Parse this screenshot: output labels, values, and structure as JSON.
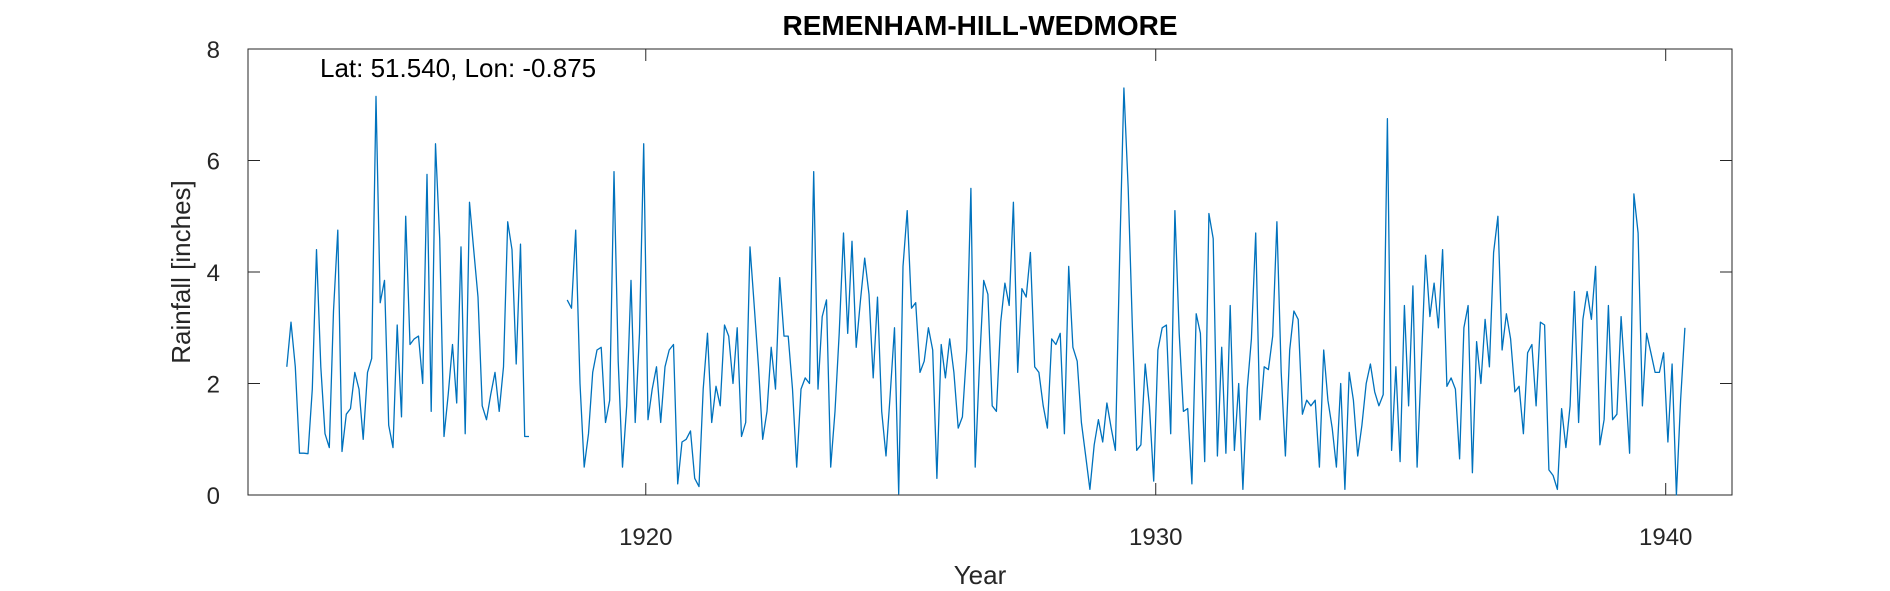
{
  "chart_data": {
    "type": "line",
    "title": "REMENHAM-HILL-WEDMORE",
    "annotation": "Lat: 51.540, Lon: -0.875",
    "xlabel": "Year",
    "ylabel": "Rainfall [inches]",
    "xlim": [
      1912.2,
      1941.3
    ],
    "ylim": [
      0,
      8
    ],
    "xticks": [
      1920,
      1930,
      1940
    ],
    "yticks": [
      0,
      2,
      4,
      6,
      8
    ],
    "grid": false,
    "line_color": "#0072bd",
    "series": [
      {
        "segments": [
          {
            "start": 1912.96,
            "step": 0.08333,
            "values": [
              2.3,
              3.1,
              2.3,
              0.75,
              0.75,
              0.74,
              1.9,
              4.4,
              2.3,
              1.1,
              0.85,
              3.3,
              4.75,
              0.78,
              1.45,
              1.55,
              2.2,
              1.9,
              1.0,
              2.2,
              2.45,
              7.15,
              3.45,
              3.85,
              1.25,
              0.85,
              3.05,
              1.4,
              5.0,
              2.7,
              2.8,
              2.85,
              2.0,
              5.75,
              1.5,
              6.3,
              4.6,
              1.05,
              1.8,
              2.7,
              1.65,
              4.45,
              1.1,
              5.25,
              4.4,
              3.55,
              1.6,
              1.35,
              1.8,
              2.2,
              1.5,
              2.3,
              4.9,
              4.4,
              2.35,
              4.5,
              1.05,
              1.05
            ]
          },
          {
            "start": 1918.46,
            "step": 0.08333,
            "values": [
              3.5,
              3.35,
              4.75,
              2.0,
              0.5,
              1.1,
              2.2,
              2.6,
              2.65,
              1.3,
              1.7,
              5.8,
              2.4,
              0.5,
              1.6,
              3.85,
              1.3,
              2.9,
              6.3,
              1.35,
              1.9,
              2.3,
              1.3,
              2.3,
              2.6,
              2.7,
              0.2,
              0.95,
              1.0,
              1.15,
              0.3,
              0.15,
              1.9,
              2.9,
              1.3,
              1.95,
              1.6,
              3.05,
              2.85,
              2.0,
              3.0,
              1.05,
              1.3,
              4.45,
              3.4,
              2.3,
              1.0,
              1.5,
              2.65,
              1.9,
              3.9,
              2.85,
              2.85,
              1.9,
              0.5,
              1.9,
              2.1,
              2.0,
              5.8,
              1.9,
              3.2,
              3.5,
              0.5,
              1.5,
              2.9,
              4.7,
              2.9,
              4.55,
              2.65,
              3.5,
              4.25,
              3.6,
              2.1,
              3.55,
              1.5,
              0.7,
              1.8,
              3.0,
              0.02,
              4.1,
              5.1,
              3.35,
              3.45,
              2.2,
              2.4,
              3.0,
              2.6,
              0.3,
              2.7,
              2.1,
              2.8,
              2.2,
              1.2,
              1.4,
              2.6,
              5.5,
              0.5,
              2.3,
              3.85,
              3.6,
              1.6,
              1.5,
              3.1,
              3.8,
              3.4,
              5.25,
              2.2,
              3.7,
              3.55,
              4.35,
              2.3,
              2.2,
              1.6,
              1.2,
              2.8,
              2.7,
              2.9,
              1.1,
              4.1,
              2.65,
              2.4,
              1.3,
              0.7,
              0.1,
              0.9,
              1.35,
              0.95,
              1.65,
              1.2,
              0.8,
              4.3,
              7.3,
              5.5,
              3.0,
              0.8,
              0.9,
              2.35,
              1.6,
              0.25,
              2.6,
              3.0,
              3.05,
              1.1,
              5.1,
              2.9,
              1.5,
              1.55,
              0.2,
              3.25,
              2.9,
              0.6,
              5.05,
              4.6,
              0.7,
              2.65,
              0.75,
              3.4,
              0.8,
              2.0,
              0.1,
              1.9,
              2.8,
              4.7,
              1.35,
              2.3,
              2.25,
              2.85,
              4.9,
              2.2,
              0.7,
              2.6,
              3.3,
              3.15,
              1.45,
              1.7,
              1.6,
              1.7,
              0.5,
              2.6,
              1.7,
              1.2,
              0.5,
              2.0,
              0.1,
              2.2,
              1.7,
              0.7,
              1.25,
              2.0,
              2.35,
              1.85,
              1.6,
              1.8,
              6.75,
              0.8,
              2.3,
              0.6,
              3.4,
              1.6,
              3.75,
              0.5,
              2.4,
              4.3,
              3.2,
              3.8,
              3.0,
              4.4,
              1.95,
              2.1,
              1.9,
              0.65,
              3.0,
              3.4,
              0.4,
              2.75,
              2.0,
              3.15,
              2.3,
              4.35,
              5.0,
              2.6,
              3.25,
              2.8,
              1.85,
              1.95,
              1.1,
              2.55,
              2.7,
              1.6,
              3.1,
              3.05,
              0.45,
              0.35,
              0.1,
              1.55,
              0.85,
              1.6,
              3.65,
              1.3,
              3.15,
              3.65,
              3.15,
              4.1,
              0.9,
              1.35,
              3.4,
              1.35,
              1.45,
              3.2,
              2.0,
              0.75,
              5.4,
              4.7,
              1.6,
              2.9,
              2.55,
              2.2,
              2.2,
              2.55,
              0.95,
              2.35,
              0.0,
              1.7,
              3.0
            ]
          }
        ]
      }
    ]
  }
}
